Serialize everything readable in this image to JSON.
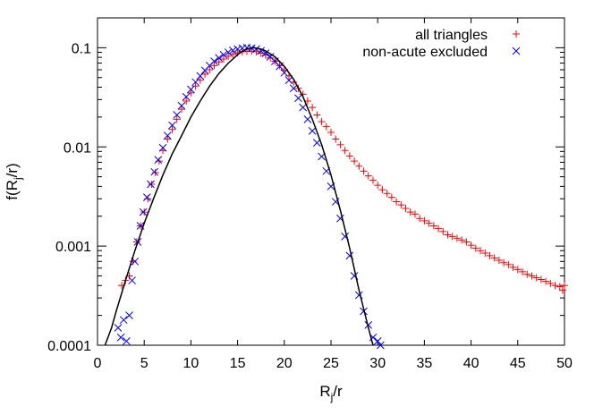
{
  "chart_data": {
    "type": "scatter",
    "title": "",
    "xlabel": "R_j/r",
    "xlabel_main": "R",
    "xlabel_sub": "j",
    "xlabel_tail": "/r",
    "ylabel": "f(R_j/r)",
    "ylabel_pre": "f(R",
    "ylabel_sub": "j",
    "ylabel_post": "/r)",
    "xlim": [
      0,
      50
    ],
    "ylim": [
      0.0001,
      0.2
    ],
    "yscale": "log",
    "grid": false,
    "legend_position": "top-right",
    "xticks": [
      {
        "value": 0,
        "label": "0"
      },
      {
        "value": 5,
        "label": "5"
      },
      {
        "value": 10,
        "label": "10"
      },
      {
        "value": 15,
        "label": "15"
      },
      {
        "value": 20,
        "label": "20"
      },
      {
        "value": 25,
        "label": "25"
      },
      {
        "value": 30,
        "label": "30"
      },
      {
        "value": 35,
        "label": "35"
      },
      {
        "value": 40,
        "label": "40"
      },
      {
        "value": 45,
        "label": "45"
      },
      {
        "value": 50,
        "label": "50"
      }
    ],
    "yticks": [
      {
        "value": 0.1,
        "label": "0.1"
      },
      {
        "value": 0.01,
        "label": "0.01"
      },
      {
        "value": 0.001,
        "label": "0.001"
      },
      {
        "value": 0.0001,
        "label": "0.0001"
      }
    ],
    "series": [
      {
        "name": "all triangles",
        "marker": "plus",
        "color": "#ff0000",
        "points": [
          [
            2.6,
            0.0004
          ],
          [
            3.0,
            0.00045
          ],
          [
            3.4,
            0.0005
          ],
          [
            3.8,
            0.0007
          ],
          [
            4.2,
            0.0011
          ],
          [
            4.6,
            0.0016
          ],
          [
            5.0,
            0.0022
          ],
          [
            5.4,
            0.003
          ],
          [
            5.8,
            0.0042
          ],
          [
            6.2,
            0.0055
          ],
          [
            6.6,
            0.0072
          ],
          [
            7.0,
            0.0092
          ],
          [
            7.5,
            0.012
          ],
          [
            8.0,
            0.015
          ],
          [
            8.5,
            0.019
          ],
          [
            9.0,
            0.024
          ],
          [
            9.5,
            0.029
          ],
          [
            10.0,
            0.035
          ],
          [
            10.5,
            0.041
          ],
          [
            11.0,
            0.047
          ],
          [
            11.5,
            0.054
          ],
          [
            12.0,
            0.06
          ],
          [
            12.5,
            0.066
          ],
          [
            13.0,
            0.072
          ],
          [
            13.5,
            0.077
          ],
          [
            14.0,
            0.082
          ],
          [
            14.5,
            0.086
          ],
          [
            15.0,
            0.089
          ],
          [
            15.5,
            0.091
          ],
          [
            16.0,
            0.092
          ],
          [
            16.5,
            0.092
          ],
          [
            17.0,
            0.091
          ],
          [
            17.5,
            0.088
          ],
          [
            18.0,
            0.084
          ],
          [
            18.5,
            0.079
          ],
          [
            19.0,
            0.073
          ],
          [
            19.5,
            0.066
          ],
          [
            20.0,
            0.059
          ],
          [
            20.5,
            0.052
          ],
          [
            21.0,
            0.045
          ],
          [
            21.5,
            0.039
          ],
          [
            22.0,
            0.034
          ],
          [
            22.5,
            0.029
          ],
          [
            23.0,
            0.025
          ],
          [
            23.5,
            0.021
          ],
          [
            24.0,
            0.018
          ],
          [
            24.5,
            0.016
          ],
          [
            25.0,
            0.014
          ],
          [
            25.5,
            0.012
          ],
          [
            26.0,
            0.0105
          ],
          [
            26.5,
            0.0092
          ],
          [
            27.0,
            0.0081
          ],
          [
            27.5,
            0.0072
          ],
          [
            28.0,
            0.0064
          ],
          [
            28.5,
            0.0057
          ],
          [
            29.0,
            0.0051
          ],
          [
            29.5,
            0.0046
          ],
          [
            30.0,
            0.0041
          ],
          [
            30.5,
            0.0037
          ],
          [
            31.0,
            0.0034
          ],
          [
            31.5,
            0.0031
          ],
          [
            32.0,
            0.0028
          ],
          [
            32.5,
            0.0026
          ],
          [
            33.0,
            0.0024
          ],
          [
            33.5,
            0.0022
          ],
          [
            34.0,
            0.0021
          ],
          [
            34.5,
            0.0019
          ],
          [
            35.0,
            0.0018
          ],
          [
            35.5,
            0.0017
          ],
          [
            36.0,
            0.0016
          ],
          [
            36.5,
            0.0015
          ],
          [
            37.0,
            0.0014
          ],
          [
            37.5,
            0.0013
          ],
          [
            38.0,
            0.00125
          ],
          [
            38.5,
            0.0012
          ],
          [
            39.0,
            0.00115
          ],
          [
            39.5,
            0.0011
          ],
          [
            40.0,
            0.00102
          ],
          [
            40.5,
            0.00095
          ],
          [
            41.0,
            0.0009
          ],
          [
            41.5,
            0.00085
          ],
          [
            42.0,
            0.0008
          ],
          [
            42.5,
            0.00076
          ],
          [
            43.0,
            0.00072
          ],
          [
            43.5,
            0.00068
          ],
          [
            44.0,
            0.00065
          ],
          [
            44.5,
            0.00061
          ],
          [
            45.0,
            0.00058
          ],
          [
            45.5,
            0.00055
          ],
          [
            46.0,
            0.00052
          ],
          [
            46.5,
            0.0005
          ],
          [
            47.0,
            0.00048
          ],
          [
            47.5,
            0.00046
          ],
          [
            48.0,
            0.00044
          ],
          [
            48.5,
            0.00042
          ],
          [
            49.0,
            0.0004
          ],
          [
            49.5,
            0.00039
          ],
          [
            50.0,
            0.0004
          ],
          [
            49.8,
            0.00036
          ]
        ]
      },
      {
        "name": "non-acute excluded",
        "marker": "cross",
        "color": "#0000ff",
        "points": [
          [
            2.2,
            0.00015
          ],
          [
            2.5,
            0.00012
          ],
          [
            2.8,
            0.00018
          ],
          [
            3.1,
            0.00011
          ],
          [
            3.4,
            0.0002
          ],
          [
            3.7,
            0.00045
          ],
          [
            4.0,
            0.0007
          ],
          [
            4.3,
            0.0011
          ],
          [
            4.6,
            0.0016
          ],
          [
            4.9,
            0.0022
          ],
          [
            5.3,
            0.0031
          ],
          [
            5.7,
            0.0042
          ],
          [
            6.1,
            0.0056
          ],
          [
            6.5,
            0.0074
          ],
          [
            7.0,
            0.0098
          ],
          [
            7.5,
            0.013
          ],
          [
            8.0,
            0.0165
          ],
          [
            8.5,
            0.021
          ],
          [
            9.0,
            0.026
          ],
          [
            9.5,
            0.032
          ],
          [
            10.0,
            0.038
          ],
          [
            10.5,
            0.045
          ],
          [
            11.0,
            0.052
          ],
          [
            11.5,
            0.059
          ],
          [
            12.0,
            0.066
          ],
          [
            12.5,
            0.073
          ],
          [
            13.0,
            0.079
          ],
          [
            13.5,
            0.085
          ],
          [
            14.0,
            0.09
          ],
          [
            14.5,
            0.094
          ],
          [
            15.0,
            0.097
          ],
          [
            15.5,
            0.099
          ],
          [
            16.0,
            0.1
          ],
          [
            16.5,
            0.099
          ],
          [
            17.0,
            0.097
          ],
          [
            17.5,
            0.093
          ],
          [
            18.0,
            0.088
          ],
          [
            18.5,
            0.081
          ],
          [
            19.0,
            0.073
          ],
          [
            19.5,
            0.065
          ],
          [
            20.0,
            0.056
          ],
          [
            20.5,
            0.047
          ],
          [
            21.0,
            0.039
          ],
          [
            21.5,
            0.031
          ],
          [
            22.0,
            0.025
          ],
          [
            22.5,
            0.019
          ],
          [
            23.0,
            0.0145
          ],
          [
            23.5,
            0.011
          ],
          [
            24.0,
            0.008
          ],
          [
            24.5,
            0.0057
          ],
          [
            25.0,
            0.004
          ],
          [
            25.5,
            0.0028
          ],
          [
            26.0,
            0.0019
          ],
          [
            26.5,
            0.00125
          ],
          [
            27.0,
            0.0008
          ],
          [
            27.5,
            0.0005
          ],
          [
            28.0,
            0.00032
          ],
          [
            28.5,
            0.00022
          ],
          [
            29.0,
            0.00016
          ],
          [
            29.5,
            0.00012
          ],
          [
            30.0,
            0.00011
          ],
          [
            30.3,
            0.0001
          ]
        ]
      },
      {
        "name": "",
        "marker": "line",
        "color": "#000000",
        "points": [
          [
            0.8,
            0.0001
          ],
          [
            1.5,
            0.00015
          ],
          [
            2.0,
            0.00022
          ],
          [
            3.0,
            0.00045
          ],
          [
            4.0,
            0.0009
          ],
          [
            5.0,
            0.0017
          ],
          [
            6.0,
            0.003
          ],
          [
            7.0,
            0.0052
          ],
          [
            8.0,
            0.0085
          ],
          [
            9.0,
            0.013
          ],
          [
            10.0,
            0.02
          ],
          [
            11.0,
            0.029
          ],
          [
            12.0,
            0.041
          ],
          [
            13.0,
            0.055
          ],
          [
            14.0,
            0.07
          ],
          [
            15.0,
            0.085
          ],
          [
            15.5,
            0.092
          ],
          [
            16.0,
            0.097
          ],
          [
            16.5,
            0.1
          ],
          [
            17.0,
            0.099
          ],
          [
            17.5,
            0.097
          ],
          [
            18.0,
            0.093
          ],
          [
            19.0,
            0.081
          ],
          [
            20.0,
            0.065
          ],
          [
            21.0,
            0.048
          ],
          [
            22.0,
            0.032
          ],
          [
            23.0,
            0.019
          ],
          [
            24.0,
            0.0105
          ],
          [
            25.0,
            0.0052
          ],
          [
            26.0,
            0.0023
          ],
          [
            27.0,
            0.00095
          ],
          [
            28.0,
            0.00036
          ],
          [
            29.0,
            0.00015
          ],
          [
            29.5,
            0.0001
          ]
        ]
      }
    ]
  }
}
